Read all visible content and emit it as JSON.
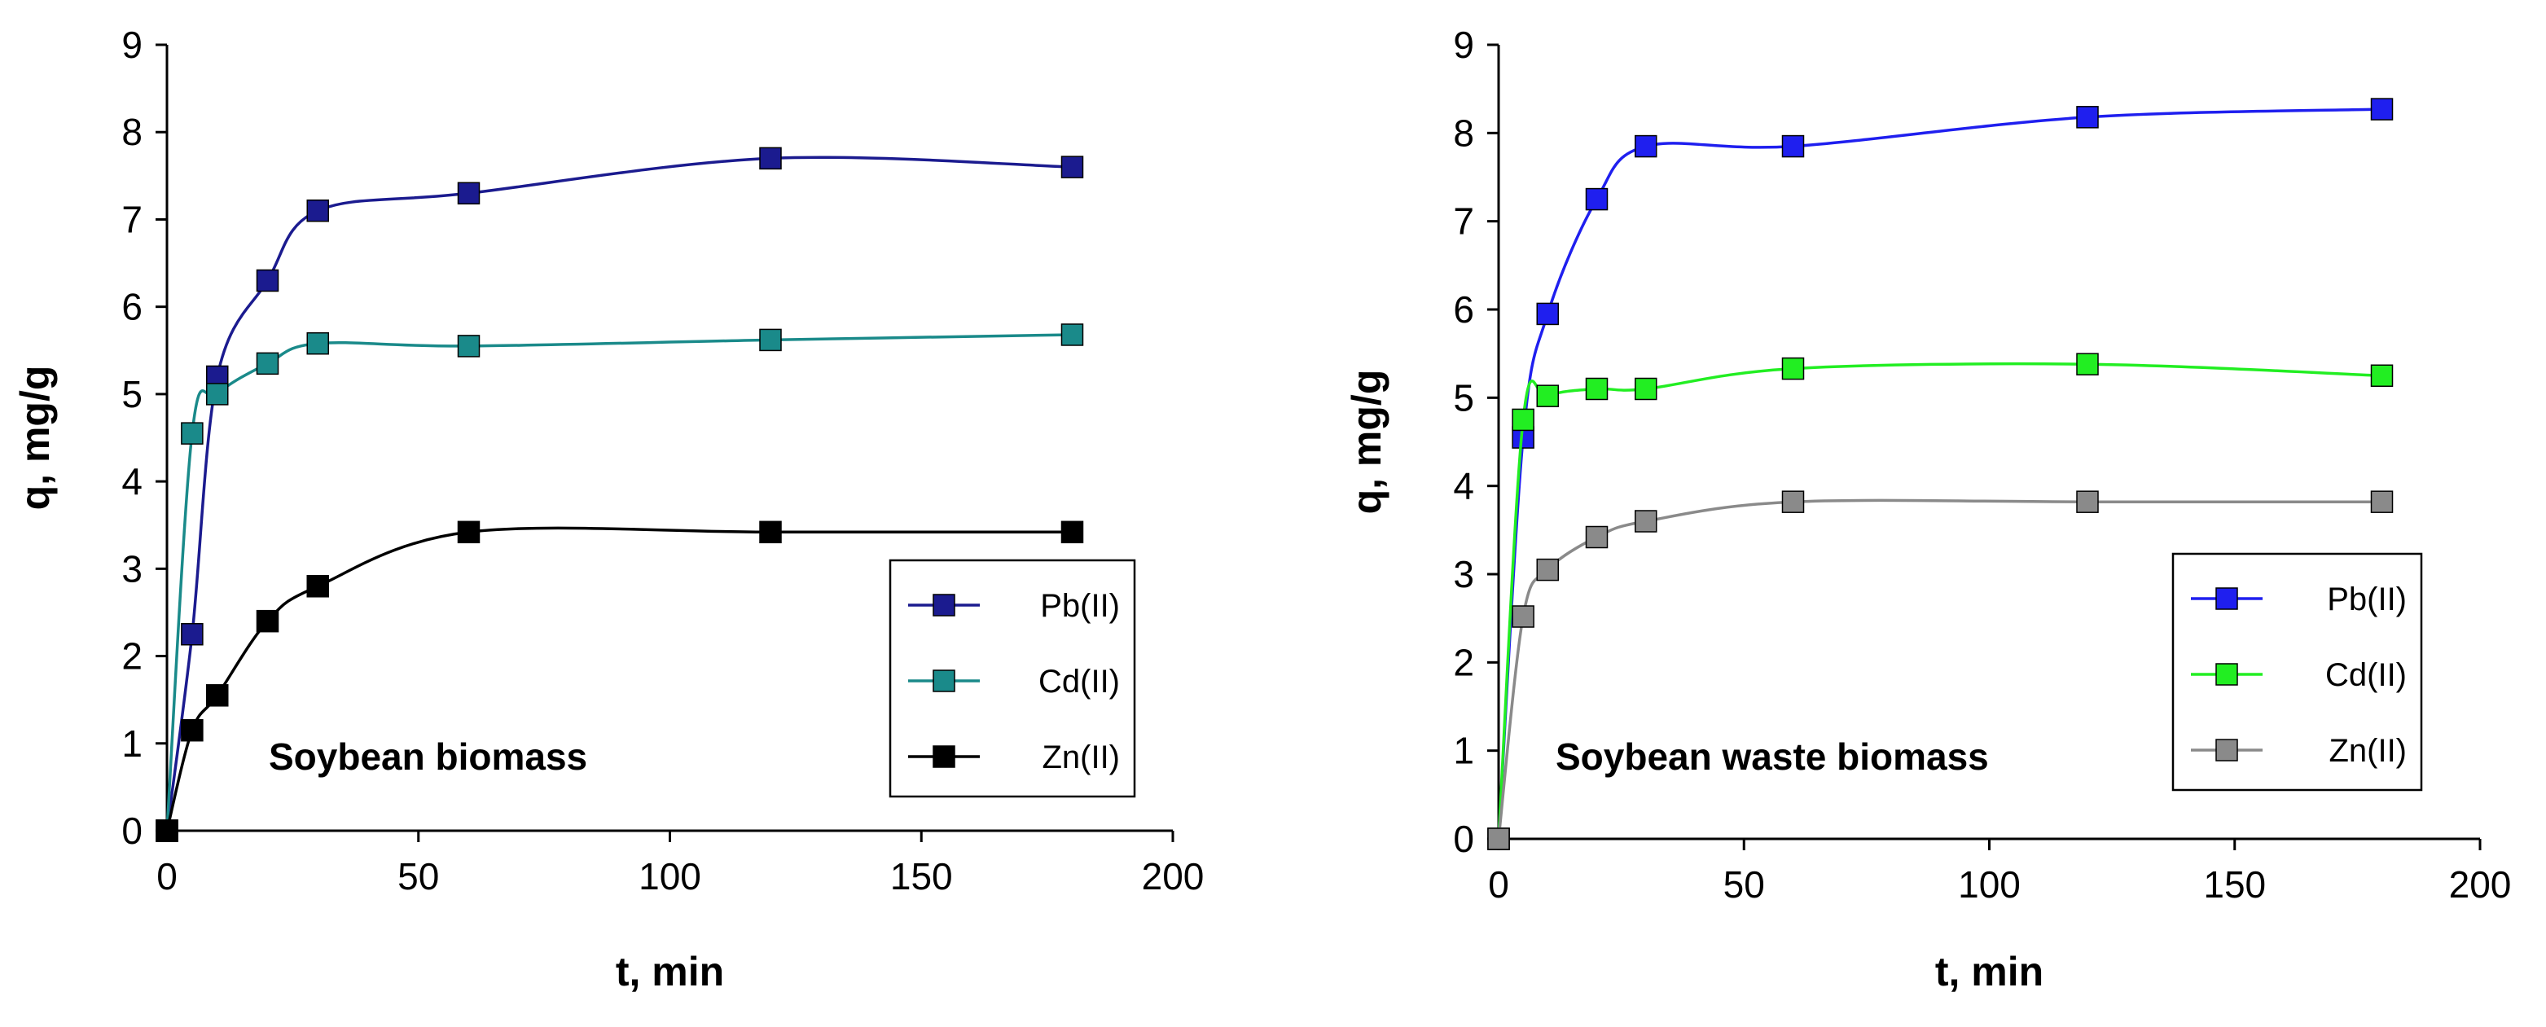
{
  "chart_data": [
    {
      "type": "line",
      "annotation": "Soybean biomass",
      "xlabel": "t, min",
      "ylabel": "q, mg/g",
      "xlim": [
        0,
        200
      ],
      "ylim": [
        0,
        9
      ],
      "xticks": [
        0,
        50,
        100,
        150,
        200
      ],
      "yticks": [
        0,
        1,
        2,
        3,
        4,
        5,
        6,
        7,
        8,
        9
      ],
      "grid": false,
      "legend_position": "bottom-right",
      "series": [
        {
          "name": "Pb(II)",
          "color": "#1b1b8f",
          "x": [
            0,
            5,
            10,
            20,
            30,
            60,
            120,
            180
          ],
          "y": [
            0,
            2.25,
            5.2,
            6.3,
            7.1,
            7.3,
            7.7,
            7.6
          ]
        },
        {
          "name": "Cd(II)",
          "color": "#1a8a8a",
          "x": [
            0,
            5,
            10,
            20,
            30,
            60,
            120,
            180
          ],
          "y": [
            0,
            4.55,
            5.0,
            5.35,
            5.58,
            5.55,
            5.62,
            5.68
          ]
        },
        {
          "name": "Zn(II)",
          "color": "#000000",
          "x": [
            0,
            5,
            10,
            20,
            30,
            60,
            120,
            180
          ],
          "y": [
            0,
            1.15,
            1.55,
            2.4,
            2.8,
            3.42,
            3.42,
            3.42
          ]
        }
      ]
    },
    {
      "type": "line",
      "annotation": "Soybean waste biomass",
      "xlabel": "t, min",
      "ylabel": "q, mg/g",
      "xlim": [
        0,
        200
      ],
      "ylim": [
        0,
        9
      ],
      "xticks": [
        0,
        50,
        100,
        150,
        200
      ],
      "yticks": [
        0,
        1,
        2,
        3,
        4,
        5,
        6,
        7,
        8,
        9
      ],
      "grid": false,
      "legend_position": "bottom-right",
      "series": [
        {
          "name": "Pb(II)",
          "color": "#1f1fef",
          "x": [
            0,
            5,
            10,
            20,
            30,
            60,
            120,
            180
          ],
          "y": [
            0,
            4.55,
            5.95,
            7.25,
            7.85,
            7.85,
            8.18,
            8.27
          ]
        },
        {
          "name": "Cd(II)",
          "color": "#22ee22",
          "x": [
            0,
            5,
            10,
            20,
            30,
            60,
            120,
            180
          ],
          "y": [
            0,
            4.75,
            5.02,
            5.1,
            5.1,
            5.33,
            5.38,
            5.25
          ]
        },
        {
          "name": "Zn(II)",
          "color": "#8a8a8a",
          "x": [
            0,
            5,
            10,
            20,
            30,
            60,
            120,
            180
          ],
          "y": [
            0,
            2.52,
            3.05,
            3.42,
            3.6,
            3.82,
            3.82,
            3.82
          ]
        }
      ]
    }
  ]
}
